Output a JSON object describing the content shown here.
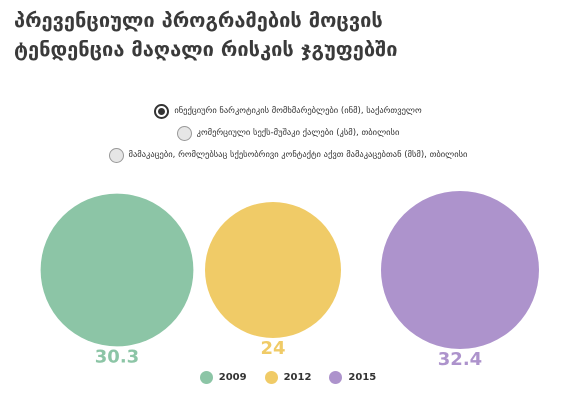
{
  "title_line1": "პრევენციული პროგრამების მოცვის",
  "title_line2": "ტენდენცია მაღალი რისკის ჯგუფებში",
  "options": [
    {
      "label": "ინექციური ნარკოტიკის მომხმარებლები (ინმ), საქართველო",
      "selected": true
    },
    {
      "label": "კომერციული სექს-მუშაკი ქალები (კსმ), თბილისი",
      "selected": false
    },
    {
      "label": "მამაკაცები, რომლებსაც სქესობრივი კონტაქტი აქვთ მამაკაცებთან (მსმ), თბილისი",
      "selected": false
    }
  ],
  "colors": {
    "2009": "#8cc5a6",
    "2012": "#f0cb67",
    "2015": "#ad93cc"
  },
  "chart_data": {
    "type": "bubble",
    "categories": [
      "2009",
      "2012",
      "2015"
    ],
    "values": [
      30.3,
      24,
      32.4
    ],
    "labels": [
      "30.3",
      "24",
      "32.4"
    ],
    "legend": [
      "2009",
      "2012",
      "2015"
    ],
    "legend_position": "bottom-center"
  }
}
